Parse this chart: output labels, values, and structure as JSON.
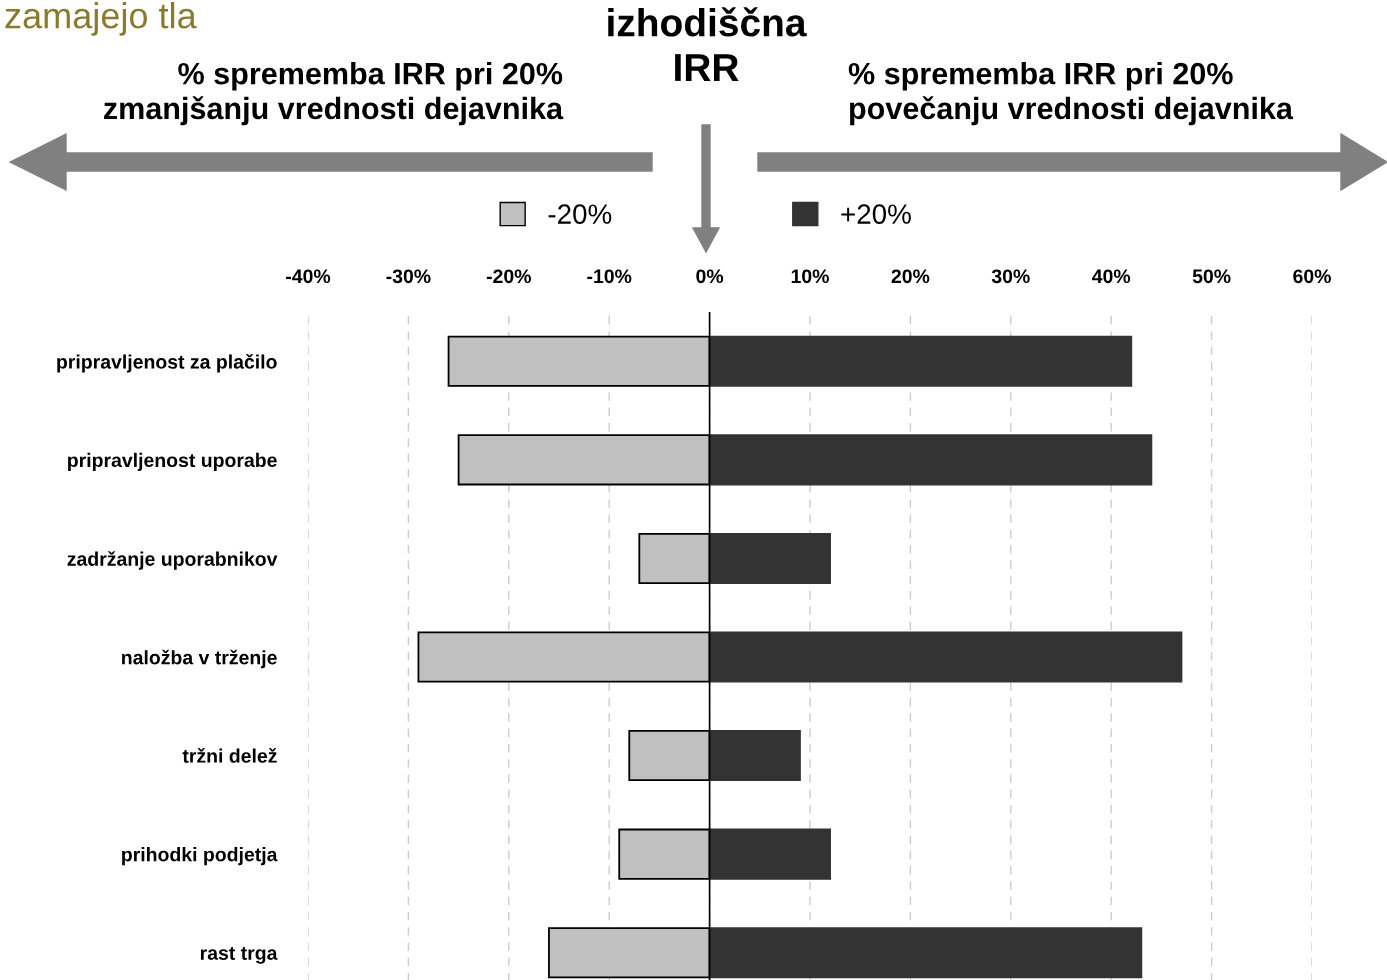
{
  "chart_data": {
    "type": "bar",
    "orientation": "horizontal",
    "title": "izhodiščna\nIRR",
    "annotations": [
      "% sprememba IRR pri 20%\nzmanjšanju vrednosti dejavnika",
      "% sprememba IRR pri 20%\npovečanju vrednosti dejavnika",
      "zamajejo tla"
    ],
    "categories": [
      "pripravljenost za plačilo",
      "pripravljenost uporabe",
      "zadržanje uporabnikov",
      "naložba v trženje",
      "tržni delež",
      "prihodki podjetja",
      "rast trga"
    ],
    "series": [
      {
        "name": "-20%",
        "color": "#c0c0c0",
        "values": [
          -26,
          -25,
          -7,
          -29,
          -8,
          -9,
          -16
        ]
      },
      {
        "name": "+20%",
        "color": "#333333",
        "values": [
          42,
          44,
          12,
          47,
          9,
          12,
          43
        ]
      }
    ],
    "xlim": [
      -40,
      60
    ],
    "xticks": [
      {
        "value": -40,
        "label": "-40%"
      },
      {
        "value": -30,
        "label": "-30%"
      },
      {
        "value": -20,
        "label": "-20%"
      },
      {
        "value": -10,
        "label": "-10%"
      },
      {
        "value": 0,
        "label": "0%"
      },
      {
        "value": 10,
        "label": "10%"
      },
      {
        "value": 20,
        "label": "20%"
      },
      {
        "value": 30,
        "label": "30%"
      },
      {
        "value": 40,
        "label": "40%"
      },
      {
        "value": 50,
        "label": "50%"
      },
      {
        "value": 60,
        "label": "60%"
      }
    ],
    "ref_lines": [
      {
        "axis": "x",
        "value": 0,
        "color": "#000000"
      }
    ],
    "grid": "x",
    "legend": "top",
    "stacked": true
  }
}
